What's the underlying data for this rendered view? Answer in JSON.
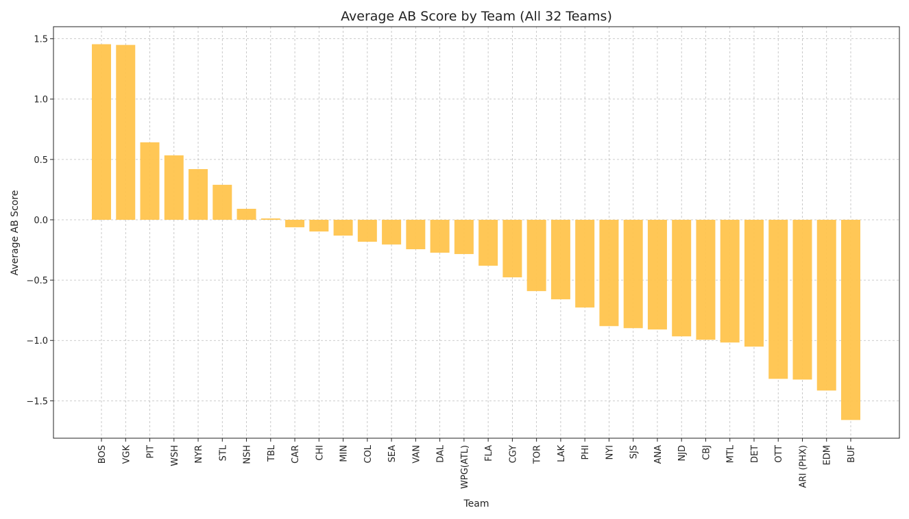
{
  "chart_data": {
    "type": "bar",
    "title": "Average AB Score by Team (All 32 Teams)",
    "xlabel": "Team",
    "ylabel": "Average AB Score",
    "ylim": [
      -1.81,
      1.6
    ],
    "yticks": [
      -1.5,
      -1.0,
      -0.5,
      0.0,
      0.5,
      1.0,
      1.5
    ],
    "ytick_labels": [
      "−1.5",
      "−1.0",
      "−0.5",
      "0.0",
      "0.5",
      "1.0",
      "1.5"
    ],
    "grid": true,
    "bar_color": "#FFC44D",
    "categories": [
      "BOS",
      "VGK",
      "PIT",
      "WSH",
      "NYR",
      "STL",
      "NSH",
      "TBL",
      "CAR",
      "CHI",
      "MIN",
      "COL",
      "SEA",
      "VAN",
      "DAL",
      "WPG(ATL)",
      "FLA",
      "CGY",
      "TOR",
      "LAK",
      "PHI",
      "NYI",
      "SJS",
      "ANA",
      "NJD",
      "CBJ",
      "MTL",
      "DET",
      "OTT",
      "ARI (PHX)",
      "EDM",
      "BUF"
    ],
    "values": [
      1.455,
      1.449,
      0.642,
      0.534,
      0.42,
      0.29,
      0.091,
      0.011,
      -0.062,
      -0.097,
      -0.131,
      -0.182,
      -0.205,
      -0.244,
      -0.273,
      -0.284,
      -0.381,
      -0.477,
      -0.591,
      -0.659,
      -0.727,
      -0.881,
      -0.898,
      -0.909,
      -0.966,
      -0.994,
      -1.017,
      -1.051,
      -1.318,
      -1.324,
      -1.415,
      -1.659
    ]
  }
}
